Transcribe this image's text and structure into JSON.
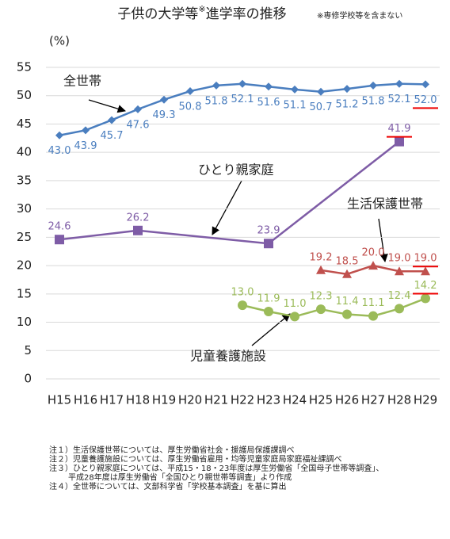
{
  "chart_data": {
    "type": "line",
    "title": "子供の大学等",
    "title_mark": "※",
    "title_rest": "進学率の推移",
    "subtitle": "※専修学校等を含まない",
    "y_label": "(%)",
    "categories": [
      "H15",
      "H16",
      "H17",
      "H18",
      "H19",
      "H20",
      "H21",
      "H22",
      "H23",
      "H24",
      "H25",
      "H26",
      "H27",
      "H28",
      "H29"
    ],
    "ylim": [
      0,
      55
    ],
    "yticks": [
      0,
      5,
      10,
      15,
      20,
      25,
      30,
      35,
      40,
      45,
      50,
      55
    ],
    "grid": true,
    "span_gaps": true,
    "series": [
      {
        "name": "全世帯",
        "color": "#4a7ebf",
        "marker": "diamond",
        "label_side": "below",
        "values": [
          43.0,
          43.9,
          45.7,
          47.6,
          49.3,
          50.8,
          51.8,
          52.1,
          51.6,
          51.1,
          50.7,
          51.2,
          51.8,
          52.1,
          52.0
        ],
        "value_labels": [
          "43.0",
          "43.9",
          "45.7",
          "47.6",
          "49.3",
          "50.8",
          "51.8",
          "52.1",
          "51.6",
          "51.1",
          "50.7",
          "51.2",
          "51.8",
          "52.1",
          "52.0"
        ]
      },
      {
        "name": "ひとり親家庭",
        "color": "#7e5ca6",
        "marker": "square",
        "label_side": "above",
        "values": [
          24.6,
          null,
          null,
          26.2,
          null,
          null,
          null,
          null,
          23.9,
          null,
          null,
          null,
          null,
          41.9,
          null
        ],
        "value_labels": [
          "24.6",
          null,
          null,
          "26.2",
          null,
          null,
          null,
          null,
          "23.9",
          null,
          null,
          null,
          null,
          "41.9",
          null
        ]
      },
      {
        "name": "生活保護世帯",
        "color": "#c0504d",
        "marker": "triangle",
        "label_side": "above",
        "values": [
          null,
          null,
          null,
          null,
          null,
          null,
          null,
          null,
          null,
          null,
          19.2,
          18.5,
          20.0,
          19.0,
          19.0
        ],
        "value_labels": [
          null,
          null,
          null,
          null,
          null,
          null,
          null,
          null,
          null,
          null,
          "19.2",
          "18.5",
          "20.0",
          "19.0",
          "19.0"
        ]
      },
      {
        "name": "児童養護施設",
        "color": "#9bbb59",
        "marker": "circle",
        "label_side": "above",
        "values": [
          null,
          null,
          null,
          null,
          null,
          null,
          null,
          13.0,
          11.9,
          11.0,
          12.3,
          11.4,
          11.1,
          12.4,
          14.2
        ],
        "value_labels": [
          null,
          null,
          null,
          null,
          null,
          null,
          null,
          "13.0",
          "11.9",
          "11.0",
          "12.3",
          "11.4",
          "11.1",
          "12.4",
          "14.2"
        ]
      }
    ],
    "notes": [
      "注１）生活保護世帯については、厚生労働省社会・援護局保護課調べ",
      "注２）児童養護施設については、厚生労働省雇用・均等児童家庭局家庭福祉課調べ",
      "注３）ひとり親家庭については、平成15・18・23年度は厚生労働省「全国母子世帯等調査」、",
      "平成28年度は厚生労働省「全国ひとり親世帯等調査」より作成",
      "注４）全世帯については、文部科学省「学校基本調査」を基に算出"
    ]
  }
}
